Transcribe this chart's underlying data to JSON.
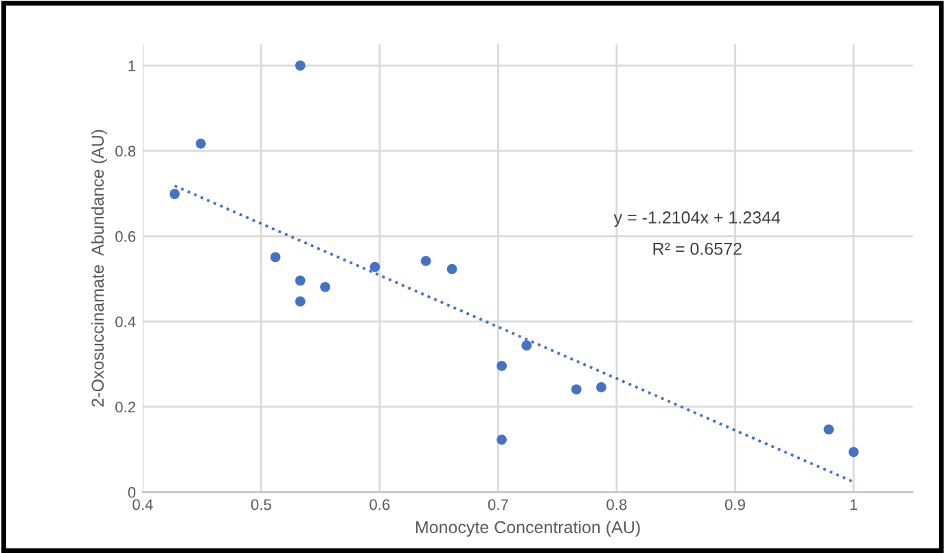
{
  "chart_data": {
    "type": "scatter",
    "xlabel": "Monocyte Concentration (AU)",
    "ylabel": "2-Oxosuccinamate  Abundance (AU)",
    "xlim": [
      0.4,
      1.05
    ],
    "xticks": [
      0.4,
      0.5,
      0.6,
      0.7,
      0.8,
      0.9,
      1
    ],
    "ylim": [
      0,
      1.05
    ],
    "yticks": [
      0,
      0.2,
      0.4,
      0.6,
      0.8,
      1
    ],
    "grid": true,
    "marker": "circle",
    "series": [
      {
        "color": "#4472c4",
        "x": [
          0.427,
          0.449,
          0.533,
          0.512,
          0.533,
          0.533,
          0.554,
          0.596,
          0.639,
          0.661,
          0.724,
          0.703,
          0.703,
          0.766,
          0.787,
          0.979,
          1.0
        ],
        "values": [
          0.699,
          0.817,
          1.0,
          0.551,
          0.496,
          0.447,
          0.481,
          0.528,
          0.542,
          0.523,
          0.344,
          0.296,
          0.123,
          0.241,
          0.246,
          0.147,
          0.094
        ]
      },
      {
        "type": "line",
        "color": "#4472c4",
        "line_style": "dotted",
        "marker": "none",
        "x": [
          0.427,
          1.0
        ],
        "values": [
          0.718,
          0.024
        ]
      }
    ],
    "annotations": [
      "y = -1.2104x + 1.2344",
      "R² = 0.6572"
    ]
  }
}
